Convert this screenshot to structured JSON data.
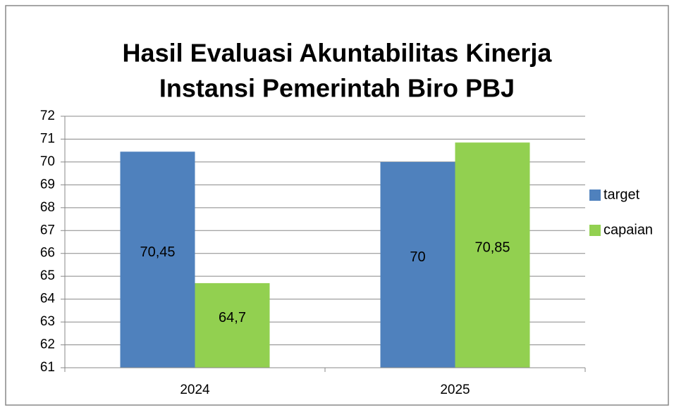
{
  "chart_data": {
    "type": "bar",
    "title": [
      "Hasil Evaluasi Akuntabilitas Kinerja",
      "Instansi Pemerintah Biro PBJ"
    ],
    "categories": [
      "2024",
      "2025"
    ],
    "series": [
      {
        "name": "target",
        "color": "#4f81bd",
        "values": [
          70.45,
          70
        ],
        "value_labels": [
          "70,45",
          "70"
        ]
      },
      {
        "name": "capaian",
        "color": "#92d050",
        "values": [
          64.7,
          70.85
        ],
        "value_labels": [
          "64,7",
          "70,85"
        ]
      }
    ],
    "ylim": [
      61,
      72
    ],
    "yticks": [
      61,
      62,
      63,
      64,
      65,
      66,
      67,
      68,
      69,
      70,
      71,
      72
    ],
    "grid": true,
    "legend": "right"
  }
}
